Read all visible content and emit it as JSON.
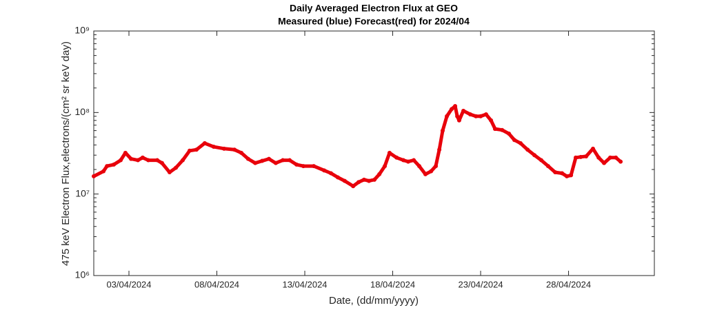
{
  "chart_data": {
    "type": "line",
    "title": "Daily Averaged Electron Flux at GEO",
    "subtitle": "Measured (blue) Forecast(red) for 2024/04",
    "x_label": "Date, (dd/mm/yyyy)",
    "y_label": "475 keV Electron Flux,electrons/(cm² sr keV day)",
    "log_y": true,
    "xlim": [
      1,
      32.88
    ],
    "xticks": [
      {
        "value": 3,
        "label": "03/04/2024"
      },
      {
        "value": 8,
        "label": "08/04/2024"
      },
      {
        "value": 13,
        "label": "13/04/2024"
      },
      {
        "value": 18,
        "label": "18/04/2024"
      },
      {
        "value": 23,
        "label": "23/04/2024"
      },
      {
        "value": 28,
        "label": "28/04/2024"
      }
    ],
    "ylim": [
      1000000,
      1000000000
    ],
    "yticks": [
      {
        "value": 1000000,
        "label": "10⁶"
      },
      {
        "value": 10000000,
        "label": "10⁷"
      },
      {
        "value": 100000000,
        "label": "10⁸"
      },
      {
        "value": 1000000000,
        "label": "10⁹"
      }
    ],
    "x": [
      1.0,
      1.55,
      1.75,
      2.14,
      2.53,
      2.8,
      3.12,
      3.51,
      3.78,
      4.1,
      4.61,
      4.88,
      5.31,
      5.67,
      6.06,
      6.45,
      6.84,
      7.31,
      7.82,
      8.41,
      9.0,
      9.39,
      9.78,
      10.18,
      10.57,
      10.96,
      11.35,
      11.75,
      12.14,
      12.53,
      12.92,
      13.51,
      14.1,
      14.49,
      14.88,
      15.27,
      15.75,
      16.06,
      16.37,
      16.65,
      16.96,
      17.24,
      17.55,
      17.82,
      18.22,
      18.61,
      18.88,
      19.2,
      19.51,
      19.86,
      20.18,
      20.45,
      20.65,
      20.84,
      21.08,
      21.35,
      21.55,
      21.67,
      21.78,
      22.02,
      22.41,
      22.73,
      23.0,
      23.31,
      23.59,
      23.82,
      24.22,
      24.61,
      24.92,
      25.27,
      25.67,
      26.06,
      26.45,
      26.84,
      27.24,
      27.63,
      27.9,
      28.14,
      28.41,
      28.69,
      29.0,
      29.39,
      29.71,
      30.02,
      30.37,
      30.69,
      30.96
    ],
    "series": [
      {
        "name": "Forecast",
        "color": "#e8000b",
        "values": [
          16500000,
          19000000,
          22000000,
          23000000,
          26000000,
          32000000,
          27000000,
          26000000,
          28000000,
          26000000,
          26000000,
          24000000,
          18500000,
          21000000,
          26000000,
          34000000,
          35000000,
          42000000,
          38000000,
          36000000,
          35000000,
          32000000,
          27000000,
          24000000,
          25500000,
          27000000,
          24000000,
          26000000,
          26000000,
          23000000,
          22000000,
          22000000,
          19500000,
          18000000,
          16000000,
          14500000,
          12500000,
          14000000,
          15000000,
          14500000,
          15000000,
          17500000,
          22000000,
          32000000,
          28000000,
          26000000,
          25000000,
          26000000,
          22000000,
          17500000,
          19000000,
          22000000,
          35000000,
          60000000,
          90000000,
          110000000,
          120000000,
          90000000,
          80000000,
          105000000,
          95000000,
          90000000,
          90000000,
          95000000,
          80000000,
          63000000,
          61000000,
          55000000,
          46000000,
          42000000,
          35000000,
          30000000,
          26000000,
          22000000,
          18500000,
          18000000,
          16500000,
          17000000,
          28000000,
          28500000,
          29000000,
          36000000,
          28000000,
          24000000,
          28000000,
          28000000,
          25000000
        ]
      }
    ]
  }
}
